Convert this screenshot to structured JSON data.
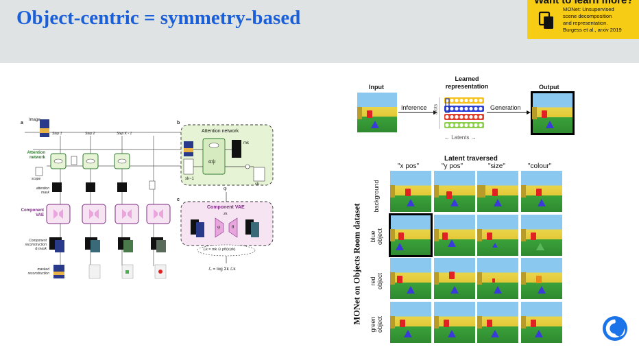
{
  "slide": {
    "title": "Object-centric = symmetry-based"
  },
  "callout": {
    "heading": "Want to learn more?",
    "reference": "MONet: Unsupervised\nscene decomposition\nand representation.\nBurgess et al., arxiv 2019",
    "icon": "copy-documents-icon",
    "color": "#f6cc14"
  },
  "left_figure": {
    "panel_a": "a",
    "panel_b": "b",
    "panel_c": "c",
    "image_label": "Image",
    "x_label": "x",
    "steps": [
      "Step 1",
      "Step 2",
      "Step K - 1"
    ],
    "attention_network": "Attention\nnetwork",
    "scope": "scope",
    "attention_mask": "attention\nmask",
    "component_vae": "Component\nVAE",
    "component_recon": "Component\nreconstruction\n& mask",
    "masked_recon": "masked\nreconstruction",
    "b_title": "Attention network",
    "b_alpha": "αψ",
    "b_m": "mk",
    "b_s_prev": "sk−1",
    "b_s": "sk",
    "c_title": "Component VAE",
    "c_phi": "φ",
    "c_theta": "θ",
    "c_z": "zk",
    "c_phi_top": "φ",
    "c_lk": "ℒk = mk ⊙ pθ(x|zk)",
    "c_loss": "ℒ = log Σk ℒk",
    "colors": {
      "green_box": "#e6f3d4",
      "pink_box": "#f7e4f3",
      "green_text": "#2c7a2c",
      "purple_text": "#7c2a82",
      "vae_fill": "#e8a6dd"
    }
  },
  "right_top": {
    "input": "Input",
    "learned": "Learned\nrepresentation",
    "output": "Output",
    "inference": "Inference",
    "generation": "Generation",
    "slots": "Slots",
    "latents": "←  Latents  →",
    "slot_colors": [
      "#f6c21a",
      "#2b3fd8",
      "#e0402e",
      "#8ed04b"
    ]
  },
  "right_grid": {
    "header": "Latent traversed",
    "columns": [
      "\"x pos\"",
      "\"y pos\"",
      "\"size\"",
      "\"colour\""
    ],
    "rows": [
      "background",
      "blue\nobject",
      "red\nobject",
      "green\nobject"
    ],
    "side_title": "MONet on Objects Room dataset"
  },
  "logo": {
    "icon": "deepmind-logo-icon",
    "color": "#1a73e8"
  }
}
